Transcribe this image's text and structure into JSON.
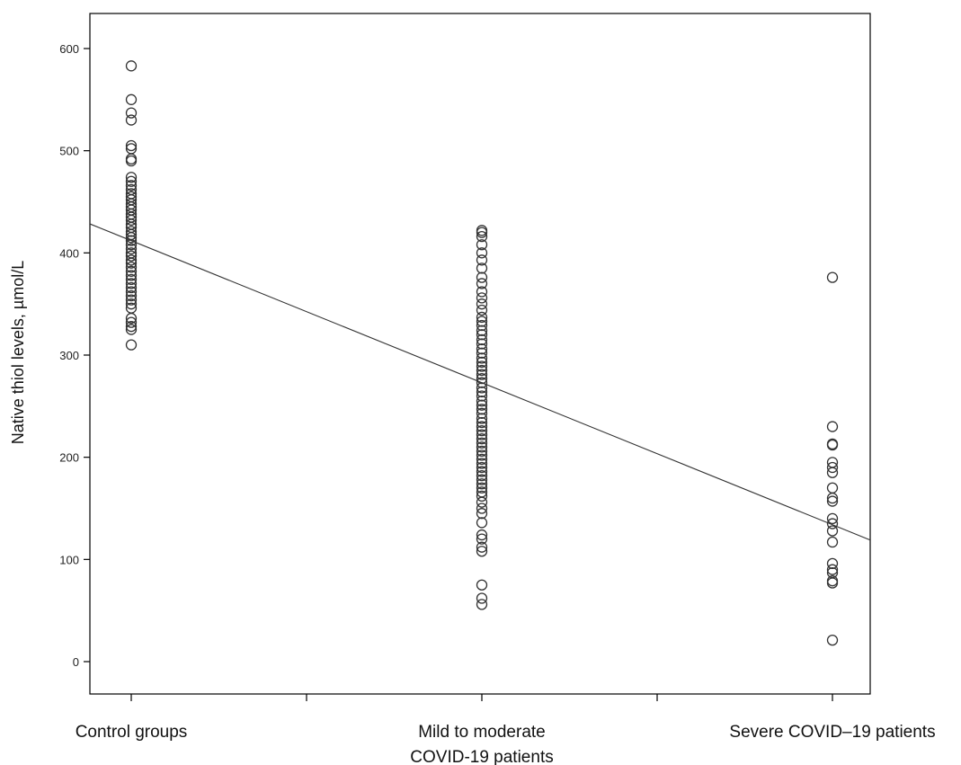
{
  "chart_data": {
    "type": "scatter",
    "ylabel": "Native thiol levels, µmol/L",
    "xlabel": "",
    "ylim": [
      0,
      600
    ],
    "yticks": [
      0,
      100,
      200,
      300,
      400,
      500,
      600
    ],
    "ytick_labels": [
      "0",
      "100",
      "200",
      "300",
      "400",
      "500",
      "600"
    ],
    "grid": false,
    "categories": [
      {
        "label_lines": [
          "Control groups"
        ]
      },
      {
        "label_lines": [
          "Mild to moderate",
          "COVID-19 patients"
        ]
      },
      {
        "label_lines": [
          "Severe COVID–19 patients"
        ]
      }
    ],
    "series": [
      {
        "category_index": 0,
        "values": [
          583,
          550,
          537,
          530,
          505,
          502,
          492,
          490,
          474,
          470,
          466,
          462,
          458,
          455,
          452,
          448,
          445,
          442,
          438,
          435,
          432,
          428,
          425,
          421,
          418,
          415,
          412,
          408,
          404,
          400,
          397,
          393,
          390,
          386,
          382,
          378,
          374,
          370,
          366,
          362,
          358,
          354,
          350,
          346,
          336,
          332,
          328,
          325,
          310
        ]
      },
      {
        "category_index": 1,
        "values": [
          422,
          420,
          416,
          408,
          400,
          393,
          385,
          376,
          370,
          362,
          356,
          350,
          344,
          337,
          333,
          329,
          324,
          320,
          315,
          311,
          306,
          302,
          297,
          293,
          289,
          285,
          281,
          277,
          273,
          268,
          264,
          260,
          255,
          251,
          247,
          243,
          238,
          234,
          230,
          226,
          222,
          218,
          214,
          210,
          206,
          202,
          198,
          194,
          190,
          186,
          182,
          178,
          174,
          170,
          166,
          162,
          156,
          150,
          145,
          136,
          124,
          120,
          112,
          108,
          75,
          62,
          56
        ]
      },
      {
        "category_index": 2,
        "values": [
          376,
          230,
          213,
          212,
          195,
          190,
          185,
          170,
          160,
          157,
          140,
          135,
          128,
          117,
          96,
          90,
          87,
          79,
          77,
          21
        ]
      }
    ],
    "trendline": {
      "type": "linear",
      "y_at_first_category": 412,
      "slope_per_category": -139
    }
  }
}
